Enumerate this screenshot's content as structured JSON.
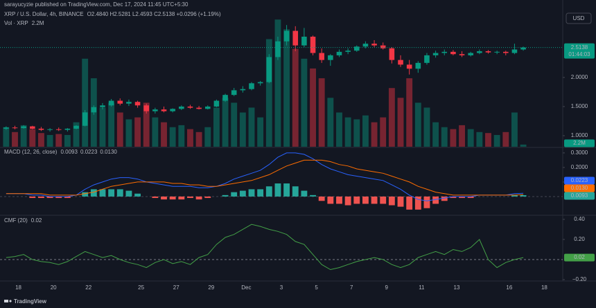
{
  "header": {
    "publisher": "sarayucyzie published on TradingView.com, Dec 17, 2024 11:45 UTC+5:30",
    "currency": "USD",
    "brand": "TradingView"
  },
  "chart_data": [
    {
      "type": "candlestick",
      "title": "XRP / U.S. Dollar, 4h, BINANCE",
      "ohlc_text": "O2.4840 H2.5281 L2.4593 C2.5138 +0.0296 (+1.19%)",
      "countdown": "01:44:03",
      "up_color": "#089981",
      "down_color": "#f23645",
      "xlim": [
        -0.7,
        63.5
      ],
      "xticks": [
        {
          "value": 1.4,
          "label": "18"
        },
        {
          "value": 5.4,
          "label": "20"
        },
        {
          "value": 9.4,
          "label": "22"
        },
        {
          "value": 15.4,
          "label": "25"
        },
        {
          "value": 19.4,
          "label": "27"
        },
        {
          "value": 23.4,
          "label": "29"
        },
        {
          "value": 27.4,
          "label": "Dec"
        },
        {
          "value": 31.4,
          "label": "3"
        },
        {
          "value": 35.4,
          "label": "5"
        },
        {
          "value": 39.4,
          "label": "7"
        },
        {
          "value": 43.4,
          "label": "9"
        },
        {
          "value": 47.4,
          "label": "11"
        },
        {
          "value": 51.4,
          "label": "13"
        },
        {
          "value": 57.4,
          "label": "16"
        },
        {
          "value": 61.4,
          "label": "18"
        }
      ],
      "ylim": [
        0.81,
        3.33
      ],
      "yticks": [
        {
          "value": 1,
          "label": "1.0000"
        },
        {
          "value": 1.5,
          "label": "1.5000"
        },
        {
          "value": 2,
          "label": "2.0000"
        }
      ],
      "open": [
        1.12,
        1.14,
        1.13,
        1.16,
        1.12,
        1.1,
        1.11,
        1.1,
        1.12,
        1.17,
        1.4,
        1.49,
        1.52,
        1.6,
        1.55,
        1.58,
        1.52,
        1.42,
        1.45,
        1.42,
        1.46,
        1.5,
        1.48,
        1.46,
        1.5,
        1.6,
        1.7,
        1.78,
        1.8,
        1.9,
        1.92,
        2.35,
        2.62,
        2.8,
        2.55,
        2.7,
        2.42,
        2.3,
        2.38,
        2.44,
        2.46,
        2.53,
        2.58,
        2.55,
        2.5,
        2.3,
        2.22,
        2.15,
        2.25,
        2.38,
        2.42,
        2.44,
        2.4,
        2.38,
        2.42,
        2.45,
        2.43,
        2.44,
        2.42,
        2.48
      ],
      "high": [
        1.16,
        1.17,
        1.18,
        1.17,
        1.15,
        1.13,
        1.14,
        1.13,
        1.18,
        1.44,
        1.52,
        1.56,
        1.63,
        1.64,
        1.62,
        1.6,
        1.55,
        1.48,
        1.5,
        1.47,
        1.52,
        1.53,
        1.51,
        1.52,
        1.62,
        1.72,
        1.82,
        1.85,
        1.92,
        1.94,
        2.4,
        2.7,
        2.9,
        2.88,
        2.85,
        2.72,
        2.5,
        2.4,
        2.48,
        2.5,
        2.55,
        2.62,
        2.64,
        2.6,
        2.52,
        2.38,
        2.3,
        2.28,
        2.42,
        2.46,
        2.48,
        2.47,
        2.45,
        2.44,
        2.48,
        2.47,
        2.46,
        2.46,
        2.58,
        2.53
      ],
      "low": [
        1.1,
        1.11,
        1.12,
        1.11,
        1.08,
        1.07,
        1.08,
        1.07,
        1.11,
        1.16,
        1.36,
        1.45,
        1.5,
        1.52,
        1.51,
        1.48,
        1.38,
        1.38,
        1.4,
        1.4,
        1.44,
        1.46,
        1.45,
        1.45,
        1.49,
        1.58,
        1.68,
        1.74,
        1.78,
        1.86,
        1.9,
        2.3,
        2.55,
        2.45,
        2.52,
        2.38,
        2.25,
        2.2,
        2.35,
        2.4,
        2.44,
        2.5,
        2.52,
        2.48,
        2.24,
        2.18,
        2.05,
        2.08,
        2.22,
        2.34,
        2.38,
        2.38,
        2.35,
        2.36,
        2.4,
        2.41,
        2.4,
        2.38,
        2.4,
        2.46
      ],
      "close": [
        1.14,
        1.13,
        1.16,
        1.12,
        1.1,
        1.11,
        1.1,
        1.12,
        1.17,
        1.4,
        1.49,
        1.52,
        1.6,
        1.55,
        1.58,
        1.52,
        1.42,
        1.45,
        1.42,
        1.46,
        1.5,
        1.48,
        1.46,
        1.5,
        1.6,
        1.7,
        1.78,
        1.8,
        1.9,
        1.92,
        2.35,
        2.62,
        2.8,
        2.55,
        2.7,
        2.42,
        2.3,
        2.38,
        2.44,
        2.46,
        2.53,
        2.58,
        2.55,
        2.5,
        2.3,
        2.22,
        2.15,
        2.25,
        2.38,
        2.42,
        2.44,
        2.4,
        2.38,
        2.42,
        2.45,
        2.43,
        2.44,
        2.42,
        2.48,
        2.5138
      ],
      "volume": {
        "name": "Vol · XRP",
        "value_label": "2.2M",
        "ylim": [
          0,
          150
        ],
        "values": [
          20,
          15,
          22,
          18,
          14,
          12,
          13,
          12,
          25,
          90,
          70,
          40,
          45,
          35,
          28,
          30,
          45,
          30,
          25,
          20,
          22,
          18,
          15,
          20,
          40,
          50,
          45,
          35,
          40,
          30,
          110,
          130,
          120,
          100,
          90,
          80,
          70,
          50,
          35,
          30,
          28,
          32,
          25,
          30,
          60,
          50,
          70,
          45,
          40,
          25,
          20,
          18,
          22,
          18,
          15,
          14,
          12,
          15,
          35,
          2.2
        ]
      }
    },
    {
      "type": "combo",
      "title": "MACD (12, 26, close)",
      "ylim": [
        -0.124,
        0.333
      ],
      "yticks": [
        {
          "value": 0.1,
          "label": "0.1000"
        },
        {
          "value": 0.2,
          "label": "0.2000"
        },
        {
          "value": 0.3,
          "label": "0.3000"
        }
      ],
      "series": [
        {
          "kind": "bar",
          "up_color": "#26a69a",
          "down_color": "#ef5350",
          "value_label": "0.0093",
          "values": [
            0,
            0,
            0,
            -0.01,
            -0.01,
            -0.01,
            -0.01,
            -0.01,
            0,
            0.03,
            0.05,
            0.05,
            0.05,
            0.05,
            0.04,
            0.02,
            0,
            -0.01,
            -0.02,
            -0.02,
            -0.02,
            -0.01,
            -0.02,
            -0.01,
            0,
            0.01,
            0.03,
            0.04,
            0.05,
            0.05,
            0.07,
            0.09,
            0.09,
            0.07,
            0.04,
            0.01,
            -0.03,
            -0.05,
            -0.05,
            -0.06,
            -0.05,
            -0.05,
            -0.05,
            -0.05,
            -0.06,
            -0.07,
            -0.09,
            -0.09,
            -0.08,
            -0.05,
            -0.03,
            -0.01,
            -0.01,
            -0.01,
            0,
            0,
            0,
            0,
            0.01,
            0.0093
          ]
        },
        {
          "kind": "line",
          "color": "#2962ff",
          "value_label": "0.0223",
          "values": [
            0.02,
            0.02,
            0.02,
            0.01,
            0.01,
            0.0,
            0.0,
            0.0,
            0.01,
            0.05,
            0.08,
            0.1,
            0.12,
            0.13,
            0.13,
            0.12,
            0.1,
            0.09,
            0.08,
            0.07,
            0.07,
            0.07,
            0.06,
            0.06,
            0.07,
            0.09,
            0.12,
            0.14,
            0.16,
            0.18,
            0.22,
            0.27,
            0.3,
            0.3,
            0.29,
            0.26,
            0.22,
            0.19,
            0.17,
            0.15,
            0.14,
            0.13,
            0.12,
            0.11,
            0.08,
            0.05,
            0.01,
            -0.02,
            -0.03,
            -0.02,
            -0.01,
            0.0,
            0.0,
            0.0,
            0.01,
            0.01,
            0.01,
            0.01,
            0.02,
            0.0223
          ]
        },
        {
          "kind": "line",
          "color": "#ff6d00",
          "value_label": "0.0130",
          "values": [
            0.02,
            0.02,
            0.02,
            0.02,
            0.02,
            0.01,
            0.01,
            0.01,
            0.01,
            0.02,
            0.03,
            0.05,
            0.07,
            0.08,
            0.09,
            0.1,
            0.1,
            0.1,
            0.1,
            0.09,
            0.09,
            0.08,
            0.08,
            0.07,
            0.07,
            0.08,
            0.09,
            0.1,
            0.11,
            0.13,
            0.15,
            0.18,
            0.21,
            0.23,
            0.25,
            0.25,
            0.25,
            0.24,
            0.22,
            0.21,
            0.19,
            0.18,
            0.17,
            0.16,
            0.14,
            0.12,
            0.1,
            0.07,
            0.05,
            0.03,
            0.02,
            0.01,
            0.01,
            0.01,
            0.01,
            0.01,
            0.01,
            0.01,
            0.01,
            0.013
          ]
        }
      ]
    },
    {
      "type": "line",
      "title": "CMF (20)",
      "color": "#43a047",
      "ylim": [
        -0.207,
        0.434
      ],
      "yticks": [
        {
          "value": -0.2,
          "label": "−0.20"
        },
        {
          "value": 0.2,
          "label": "0.20"
        },
        {
          "value": 0.4,
          "label": "0.40"
        }
      ],
      "values": [
        0.02,
        0.03,
        0.05,
        0.0,
        -0.02,
        -0.03,
        -0.05,
        -0.02,
        0.03,
        0.08,
        0.05,
        0.02,
        0.04,
        0.0,
        -0.03,
        -0.05,
        -0.08,
        -0.03,
        0.0,
        -0.04,
        -0.02,
        -0.05,
        0.02,
        0.05,
        0.15,
        0.22,
        0.25,
        0.3,
        0.35,
        0.33,
        0.3,
        0.28,
        0.25,
        0.18,
        0.15,
        0.05,
        -0.05,
        -0.1,
        -0.08,
        -0.05,
        -0.02,
        0.0,
        0.02,
        0.0,
        -0.05,
        -0.08,
        -0.05,
        0.02,
        0.05,
        0.08,
        0.05,
        0.1,
        0.08,
        0.12,
        0.2,
        0.0,
        -0.08,
        -0.03,
        0.0,
        0.02
      ]
    }
  ]
}
